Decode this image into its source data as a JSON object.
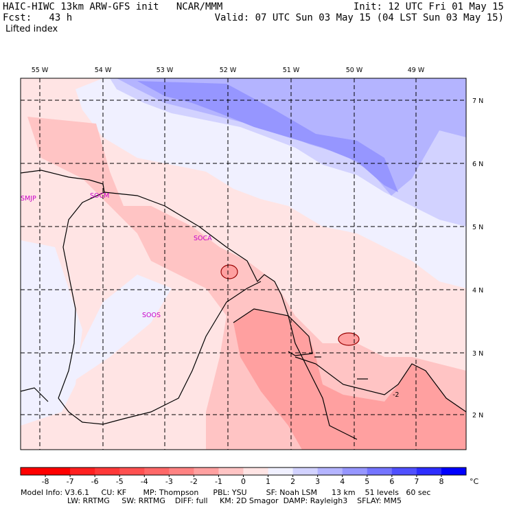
{
  "header": {
    "line1_left": "HAIC-HIWC 13km ARW-GFS init   NCAR/MMM",
    "line2_left": "Fcst:   43 h",
    "line1_right": "Init: 12 UTC Fri 01 May 15",
    "line2_right": "Valid: 07 UTC Sun 03 May 15 (04 LST Sun 03 May 15)",
    "field_name": "Lifted index"
  },
  "map": {
    "lon_labels": [
      "55 W",
      "54 W",
      "53 W",
      "52 W",
      "51 W",
      "50 W",
      "49 W"
    ],
    "lat_labels": [
      "7 N",
      "6 N",
      "5 N",
      "4 N",
      "3 N",
      "2 N"
    ],
    "stations": {
      "smjp": "SMJP",
      "socm": "SOCM",
      "soca": "SOCA",
      "soos": "SOOS"
    },
    "contour_label": "-2"
  },
  "colorbar": {
    "ticks": [
      "-8",
      "-7",
      "-6",
      "-5",
      "-4",
      "-3",
      "-2",
      "-1",
      "0",
      "1",
      "2",
      "3",
      "4",
      "5",
      "6",
      "7",
      "8"
    ],
    "unit": "°C",
    "colors": [
      "#ff0000",
      "#ff2020",
      "#ff3838",
      "#ff5050",
      "#ff6868",
      "#ff8282",
      "#ffa0a0",
      "#ffc4c4",
      "#ffe4e4",
      "#f0f0ff",
      "#d2d2ff",
      "#b4b4ff",
      "#9696ff",
      "#7474ff",
      "#5050ff",
      "#2d2dff",
      "#0000ff"
    ]
  },
  "footer": {
    "line1": "Model Info: V3.6.1     CU: KF       MP: Thompson      PBL: YSU        SF: Noah LSM      13 km    51 levels   60 sec",
    "line2": "LW: RRTMG     SW: RRTMG    DIFF: full     KM: 2D Smagor  DAMP: Rayleigh3    SFLAY: MM5"
  }
}
